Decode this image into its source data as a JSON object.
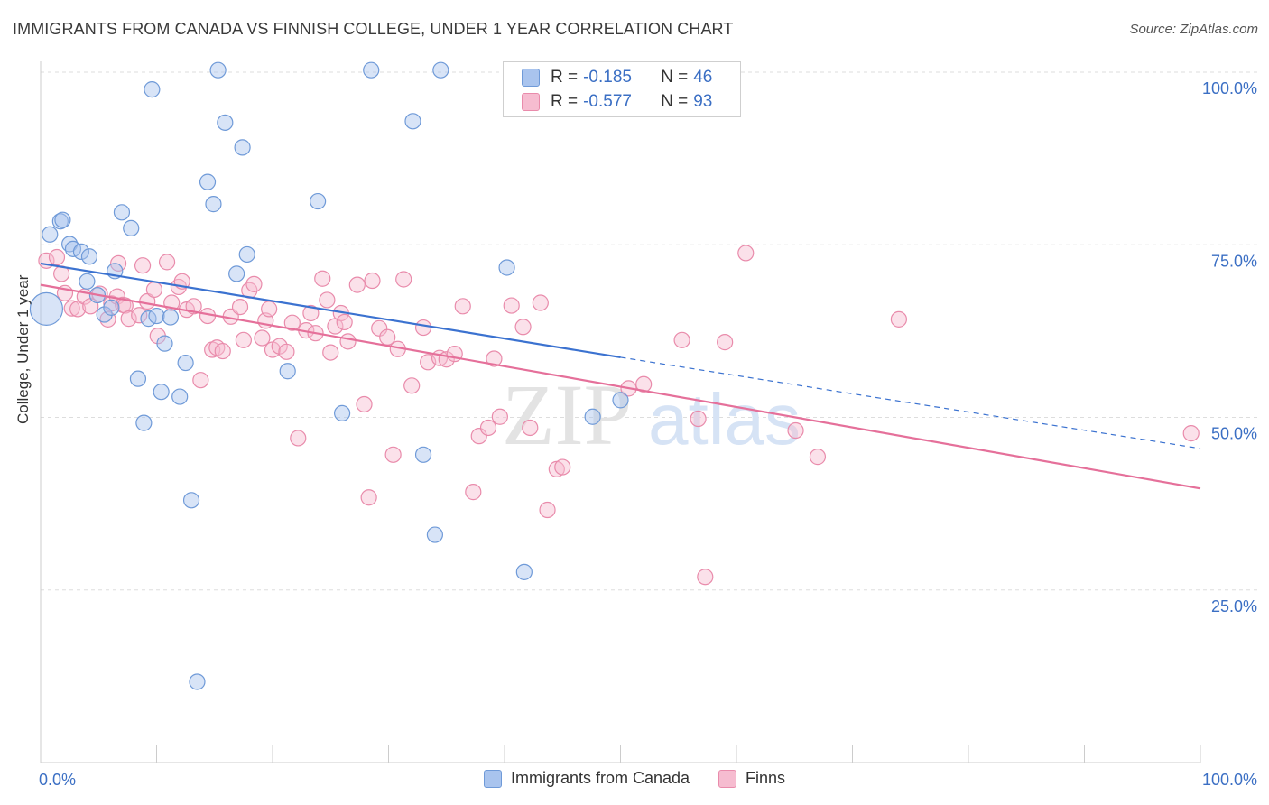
{
  "title": "IMMIGRANTS FROM CANADA VS FINNISH COLLEGE, UNDER 1 YEAR CORRELATION CHART",
  "source": "Source: ZipAtlas.com",
  "watermark": {
    "zip": "ZIP",
    "atlas": "atlas"
  },
  "colors": {
    "blue_fill": "#a9c4ee",
    "blue_stroke": "#6f9ad8",
    "blue_line": "#3b72d0",
    "pink_fill": "#f6bcd0",
    "pink_stroke": "#e98bab",
    "pink_line": "#e5709a",
    "tick_label": "#3b6fc4",
    "grid": "#dddddd"
  },
  "legend_stats": [
    {
      "r_label": "R =",
      "r_value": "-0.185",
      "n_label": "N =",
      "n_value": "46",
      "color": "blue"
    },
    {
      "r_label": "R =",
      "r_value": "-0.577",
      "n_label": "N =",
      "n_value": "93",
      "color": "pink"
    }
  ],
  "legend": [
    {
      "label": "Immigrants from Canada",
      "color": "blue"
    },
    {
      "label": "Finns",
      "color": "pink"
    }
  ],
  "chart_data": {
    "type": "scatter",
    "title": "IMMIGRANTS FROM CANADA VS FINNISH COLLEGE, UNDER 1 YEAR CORRELATION CHART",
    "xlabel": "",
    "ylabel": "College, Under 1 year",
    "xlim": [
      0,
      100
    ],
    "ylim": [
      0,
      100
    ],
    "x_tick_labels": [
      "0.0%",
      "100.0%"
    ],
    "y_ticks": [
      25,
      50,
      75,
      100
    ],
    "y_tick_labels": [
      "25.0%",
      "50.0%",
      "75.0%",
      "100.0%"
    ],
    "grid": true,
    "series": [
      {
        "name": "Immigrants from Canada",
        "color": "blue",
        "trend": {
          "x0": 0,
          "y0": 72.3,
          "x1": 50,
          "y1": 58.7,
          "dash_to_x": 100,
          "dash_to_y": 45.5
        },
        "points": [
          [
            0.8,
            76.5
          ],
          [
            1.7,
            78.4
          ],
          [
            1.9,
            78.6
          ],
          [
            2.5,
            75.1
          ],
          [
            2.8,
            74.4
          ],
          [
            3.5,
            74.0
          ],
          [
            4.2,
            73.3
          ],
          [
            4.0,
            69.7
          ],
          [
            4.9,
            67.7
          ],
          [
            5.5,
            64.9
          ],
          [
            6.1,
            65.9
          ],
          [
            6.4,
            71.2
          ],
          [
            7.0,
            79.7
          ],
          [
            7.8,
            77.4
          ],
          [
            9.3,
            64.3
          ],
          [
            8.4,
            55.6
          ],
          [
            8.9,
            49.2
          ],
          [
            9.6,
            97.5
          ],
          [
            10.0,
            64.7
          ],
          [
            10.4,
            53.7
          ],
          [
            10.7,
            60.7
          ],
          [
            11.2,
            64.5
          ],
          [
            12.0,
            53.0
          ],
          [
            12.5,
            57.9
          ],
          [
            13.0,
            38.0
          ],
          [
            13.5,
            11.7
          ],
          [
            14.4,
            84.1
          ],
          [
            14.9,
            80.9
          ],
          [
            15.3,
            100.3
          ],
          [
            15.9,
            92.7
          ],
          [
            17.4,
            89.1
          ],
          [
            16.9,
            70.8
          ],
          [
            17.8,
            73.6
          ],
          [
            21.3,
            56.7
          ],
          [
            23.9,
            81.3
          ],
          [
            26.0,
            50.6
          ],
          [
            28.5,
            100.3
          ],
          [
            32.1,
            92.9
          ],
          [
            33.0,
            44.6
          ],
          [
            34.0,
            33.0
          ],
          [
            34.5,
            100.3
          ],
          [
            40.2,
            71.7
          ],
          [
            41.7,
            27.6
          ],
          [
            47.6,
            50.1
          ],
          [
            50.0,
            52.5
          ],
          [
            0.5,
            65.7
          ]
        ]
      },
      {
        "name": "Finns",
        "color": "pink",
        "trend": {
          "x0": 0,
          "y0": 69.2,
          "x1": 100,
          "y1": 39.7
        },
        "points": [
          [
            0.5,
            72.7
          ],
          [
            1.4,
            73.2
          ],
          [
            1.8,
            70.8
          ],
          [
            2.1,
            68.0
          ],
          [
            2.7,
            65.8
          ],
          [
            3.2,
            65.7
          ],
          [
            3.8,
            67.5
          ],
          [
            4.3,
            66.1
          ],
          [
            5.1,
            67.9
          ],
          [
            5.8,
            64.2
          ],
          [
            6.1,
            66.5
          ],
          [
            6.6,
            67.5
          ],
          [
            6.7,
            72.3
          ],
          [
            7.1,
            66.3
          ],
          [
            7.3,
            66.2
          ],
          [
            7.6,
            64.3
          ],
          [
            8.5,
            64.8
          ],
          [
            8.8,
            72.0
          ],
          [
            9.2,
            66.8
          ],
          [
            9.8,
            68.5
          ],
          [
            10.1,
            61.8
          ],
          [
            10.9,
            72.5
          ],
          [
            11.3,
            66.6
          ],
          [
            11.9,
            68.9
          ],
          [
            12.2,
            69.7
          ],
          [
            12.6,
            65.6
          ],
          [
            13.2,
            66.1
          ],
          [
            13.8,
            55.4
          ],
          [
            14.4,
            64.7
          ],
          [
            14.8,
            59.8
          ],
          [
            15.2,
            60.1
          ],
          [
            15.7,
            59.6
          ],
          [
            16.4,
            64.6
          ],
          [
            17.2,
            66.0
          ],
          [
            17.5,
            61.2
          ],
          [
            18.0,
            68.4
          ],
          [
            18.4,
            69.3
          ],
          [
            19.1,
            61.5
          ],
          [
            19.4,
            64.0
          ],
          [
            19.7,
            65.7
          ],
          [
            20.0,
            59.8
          ],
          [
            20.6,
            60.3
          ],
          [
            21.2,
            59.5
          ],
          [
            21.7,
            63.7
          ],
          [
            22.2,
            47.0
          ],
          [
            22.9,
            62.6
          ],
          [
            23.3,
            65.1
          ],
          [
            23.7,
            62.2
          ],
          [
            24.3,
            70.1
          ],
          [
            24.7,
            67.0
          ],
          [
            25.0,
            59.4
          ],
          [
            25.4,
            63.2
          ],
          [
            25.9,
            65.1
          ],
          [
            26.2,
            63.8
          ],
          [
            26.5,
            61.0
          ],
          [
            27.3,
            69.2
          ],
          [
            27.9,
            51.9
          ],
          [
            28.3,
            38.4
          ],
          [
            28.6,
            69.8
          ],
          [
            29.2,
            62.9
          ],
          [
            29.9,
            61.6
          ],
          [
            30.4,
            44.6
          ],
          [
            30.8,
            59.9
          ],
          [
            31.3,
            70.0
          ],
          [
            32.0,
            54.6
          ],
          [
            33.0,
            63.0
          ],
          [
            33.4,
            58.0
          ],
          [
            34.4,
            58.6
          ],
          [
            35.0,
            58.4
          ],
          [
            35.7,
            59.2
          ],
          [
            36.4,
            66.1
          ],
          [
            37.3,
            39.2
          ],
          [
            37.8,
            47.3
          ],
          [
            38.6,
            48.5
          ],
          [
            39.1,
            58.5
          ],
          [
            39.6,
            50.1
          ],
          [
            40.6,
            66.2
          ],
          [
            41.6,
            63.1
          ],
          [
            42.2,
            48.5
          ],
          [
            43.1,
            66.6
          ],
          [
            43.7,
            36.6
          ],
          [
            44.5,
            42.5
          ],
          [
            45.0,
            42.8
          ],
          [
            50.7,
            54.2
          ],
          [
            52.0,
            54.8
          ],
          [
            55.3,
            61.2
          ],
          [
            56.7,
            49.8
          ],
          [
            57.3,
            26.9
          ],
          [
            59.0,
            60.9
          ],
          [
            60.8,
            73.8
          ],
          [
            65.1,
            48.1
          ],
          [
            67.0,
            44.3
          ],
          [
            74.0,
            64.2
          ],
          [
            99.2,
            47.7
          ]
        ]
      }
    ]
  }
}
